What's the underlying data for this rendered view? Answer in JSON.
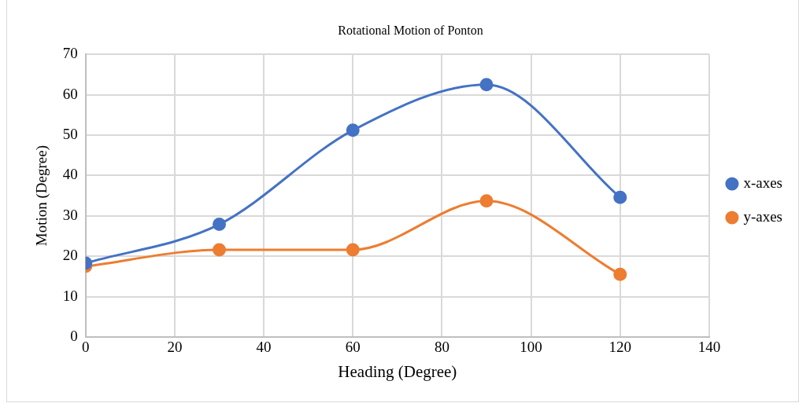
{
  "chart_data": {
    "type": "line",
    "title": "Rotational Motion of Ponton",
    "xlabel": "Heading (Degree)",
    "ylabel": "Motion (Degree)",
    "x": [
      0,
      30,
      60,
      90,
      120
    ],
    "series": [
      {
        "name": "x-axes",
        "color": "#4472c4",
        "values": [
          18.3,
          27.9,
          51.2,
          62.5,
          34.6
        ]
      },
      {
        "name": "y-axes",
        "color": "#ed7d31",
        "values": [
          17.5,
          21.6,
          21.6,
          33.7,
          15.5
        ]
      }
    ],
    "xlim": [
      0,
      140
    ],
    "xticks": [
      0,
      20,
      40,
      60,
      80,
      100,
      120,
      140
    ],
    "ylim": [
      0,
      70
    ],
    "yticks": [
      0,
      10,
      20,
      30,
      40,
      50,
      60,
      70
    ],
    "grid": true,
    "legend": "right",
    "marker": "circle",
    "line_style": "solid"
  }
}
